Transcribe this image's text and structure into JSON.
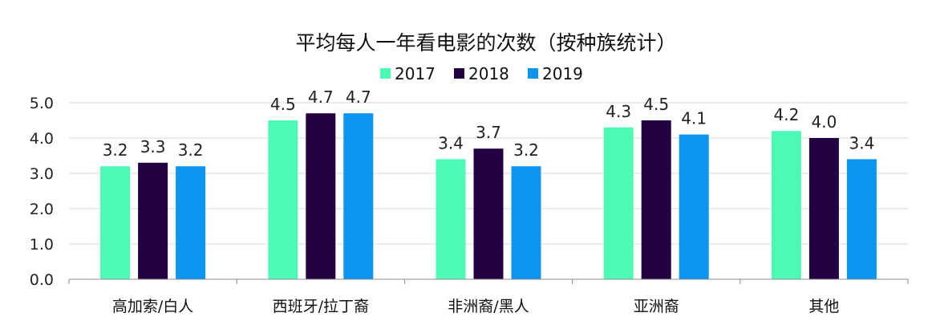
{
  "chart_data": {
    "type": "bar",
    "title": "平均每人一年看电影的次数（按种族统计）",
    "xlabel": "",
    "ylabel": "",
    "categories": [
      "高加索/白人",
      "西班牙/拉丁裔",
      "非洲裔/黑人",
      "亚洲裔",
      "其他"
    ],
    "series": [
      {
        "name": "2017",
        "color": "#4dfab5",
        "values": [
          3.2,
          4.5,
          3.4,
          4.3,
          4.2
        ],
        "labels": [
          "3.2",
          "4.5",
          "3.4",
          "4.3",
          "4.2"
        ]
      },
      {
        "name": "2018",
        "color": "#230244",
        "values": [
          3.3,
          4.7,
          3.7,
          4.5,
          4.0
        ],
        "labels": [
          "3.3",
          "4.7",
          "3.7",
          "4.5",
          "4.0"
        ]
      },
      {
        "name": "2019",
        "color": "#0c95ee",
        "values": [
          3.2,
          4.7,
          3.2,
          4.1,
          3.4
        ],
        "labels": [
          "3.2",
          "4.7",
          "3.2",
          "4.1",
          "3.4"
        ]
      }
    ],
    "ylim": [
      0,
      5
    ],
    "yticks": [
      "0.0",
      "1.0",
      "2.0",
      "3.0",
      "4.0",
      "5.0"
    ],
    "grid": true,
    "legend_position": "top"
  }
}
